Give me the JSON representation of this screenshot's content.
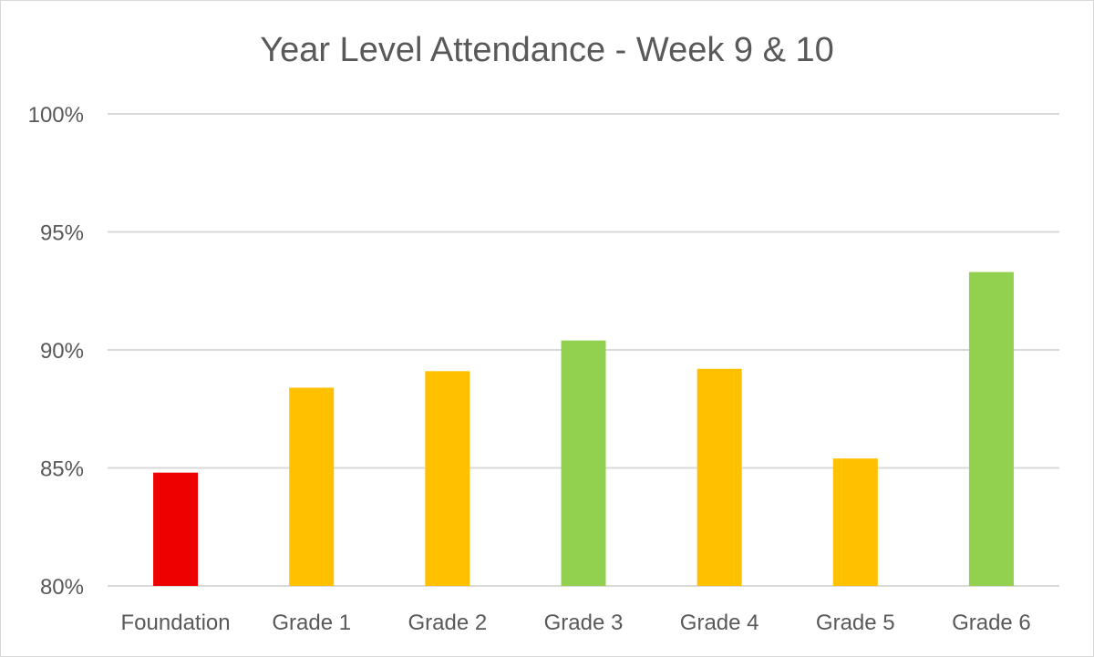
{
  "chart_data": {
    "type": "bar",
    "title": "Year Level Attendance - Week 9 & 10",
    "xlabel": "",
    "ylabel": "",
    "categories": [
      "Foundation",
      "Grade 1",
      "Grade 2",
      "Grade 3",
      "Grade 4",
      "Grade 5",
      "Grade 6"
    ],
    "values": [
      84.8,
      88.4,
      89.1,
      90.4,
      89.2,
      85.4,
      93.3
    ],
    "bar_colors": [
      "#ee0000",
      "#ffc000",
      "#ffc000",
      "#92d050",
      "#ffc000",
      "#ffc000",
      "#92d050"
    ],
    "ylim": [
      80,
      100
    ],
    "yticks": [
      80,
      85,
      90,
      95,
      100
    ],
    "ytick_labels": [
      "80%",
      "85%",
      "90%",
      "95%",
      "100%"
    ],
    "grid": true,
    "legend": "none",
    "gridline_color": "#d9d9d9"
  }
}
